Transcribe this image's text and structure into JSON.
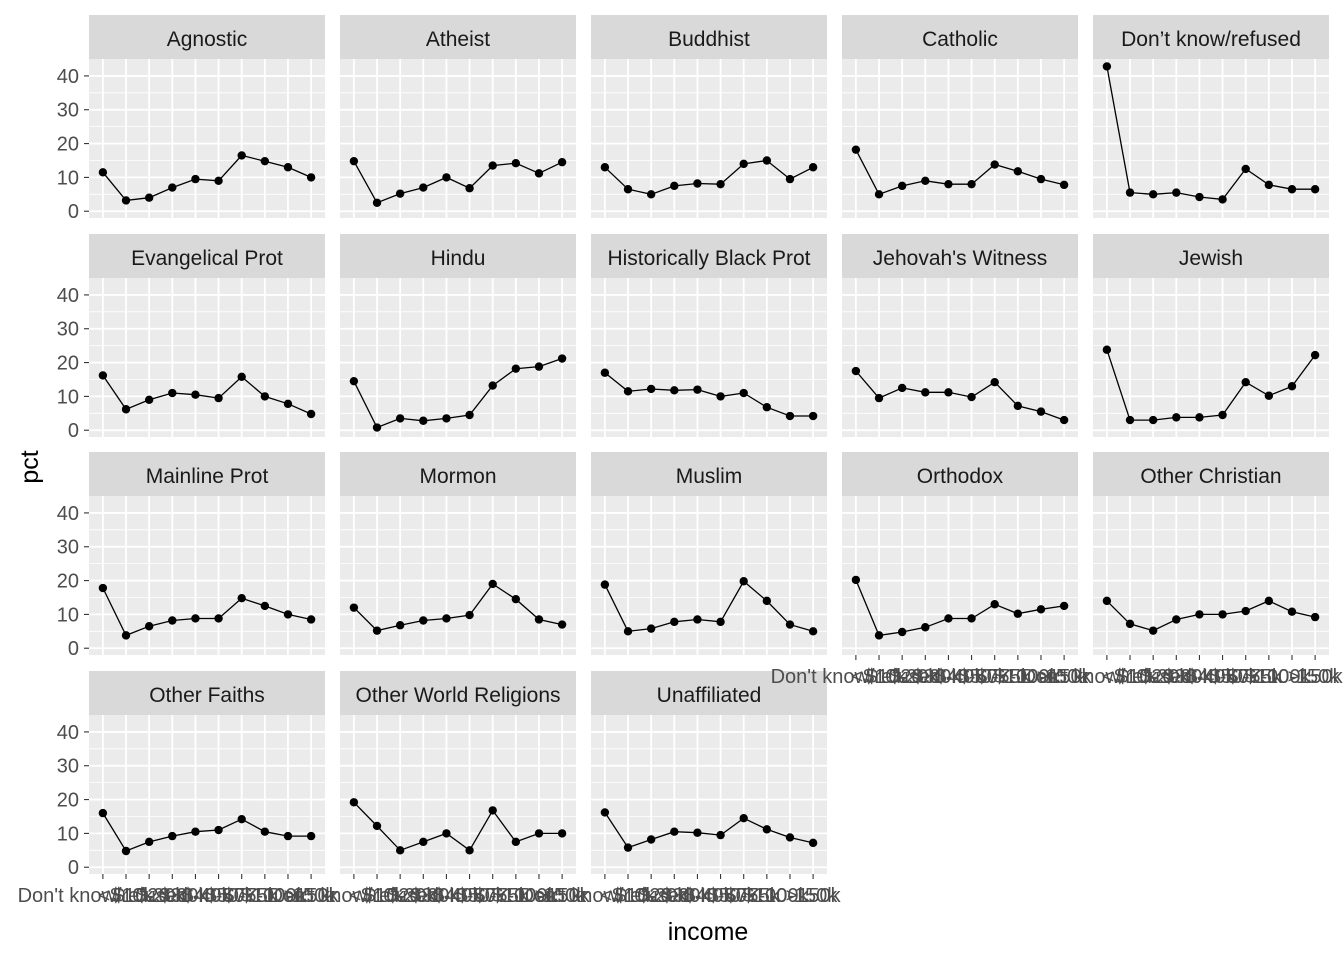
{
  "chart_data": {
    "type": "line",
    "layout": "facet-wrap",
    "xlabel": "income",
    "ylabel": "pct",
    "ylim": [
      -2,
      45
    ],
    "yticks": [
      0,
      10,
      20,
      30,
      40
    ],
    "grid": true,
    "categories": [
      "Don't know/refused",
      "<$10k",
      "$10-20k",
      "$20-30k",
      "$30-40k",
      "$40-50k",
      "$50-75k",
      "$75-100k",
      "$100-150k",
      ">150k"
    ],
    "panels": [
      {
        "name": "Agnostic",
        "values": [
          11.5,
          3.2,
          4.0,
          7.0,
          9.5,
          9.0,
          16.5,
          14.8,
          13.0,
          10.0
        ]
      },
      {
        "name": "Atheist",
        "values": [
          14.8,
          2.5,
          5.2,
          7.0,
          10.0,
          6.8,
          13.5,
          14.2,
          11.2,
          14.5
        ]
      },
      {
        "name": "Buddhist",
        "values": [
          13.0,
          6.5,
          5.0,
          7.5,
          8.2,
          8.0,
          14.0,
          15.0,
          9.5,
          13.0
        ]
      },
      {
        "name": "Catholic",
        "values": [
          18.2,
          5.0,
          7.5,
          9.0,
          8.0,
          8.0,
          13.8,
          11.8,
          9.5,
          7.8
        ]
      },
      {
        "name": "Don’t know/refused",
        "values": [
          42.8,
          5.5,
          5.0,
          5.5,
          4.2,
          3.5,
          12.5,
          7.8,
          6.5,
          6.5
        ]
      },
      {
        "name": "Evangelical Prot",
        "values": [
          16.2,
          6.2,
          9.0,
          11.0,
          10.5,
          9.5,
          15.8,
          10.0,
          7.8,
          4.8
        ]
      },
      {
        "name": "Hindu",
        "values": [
          14.5,
          0.8,
          3.5,
          2.8,
          3.5,
          4.5,
          13.2,
          18.2,
          18.8,
          21.2
        ]
      },
      {
        "name": "Historically Black Prot",
        "values": [
          17.0,
          11.5,
          12.2,
          11.8,
          12.0,
          10.0,
          11.0,
          6.8,
          4.2,
          4.2
        ]
      },
      {
        "name": "Jehovah's Witness",
        "values": [
          17.5,
          9.5,
          12.5,
          11.2,
          11.2,
          9.8,
          14.2,
          7.2,
          5.5,
          3.0
        ]
      },
      {
        "name": "Jewish",
        "values": [
          23.8,
          3.0,
          3.0,
          3.8,
          3.8,
          4.5,
          14.2,
          10.2,
          13.0,
          22.2
        ]
      },
      {
        "name": "Mainline Prot",
        "values": [
          17.8,
          3.8,
          6.5,
          8.2,
          8.8,
          8.8,
          14.8,
          12.5,
          10.0,
          8.5
        ]
      },
      {
        "name": "Mormon",
        "values": [
          12.0,
          5.2,
          6.8,
          8.2,
          8.8,
          9.8,
          19.0,
          14.5,
          8.5,
          7.0
        ]
      },
      {
        "name": "Muslim",
        "values": [
          18.8,
          5.0,
          5.8,
          7.8,
          8.5,
          7.8,
          19.8,
          14.0,
          7.0,
          5.0
        ]
      },
      {
        "name": "Orthodox",
        "values": [
          20.2,
          3.8,
          4.8,
          6.2,
          8.8,
          8.8,
          13.0,
          10.2,
          11.5,
          12.5
        ]
      },
      {
        "name": "Other Christian",
        "values": [
          14.0,
          7.2,
          5.2,
          8.5,
          10.0,
          10.0,
          11.0,
          14.0,
          10.8,
          9.2
        ]
      },
      {
        "name": "Other Faiths",
        "values": [
          16.0,
          4.8,
          7.5,
          9.2,
          10.5,
          11.0,
          14.2,
          10.5,
          9.2,
          9.2
        ]
      },
      {
        "name": "Other World Religions",
        "values": [
          19.2,
          12.2,
          5.0,
          7.5,
          10.0,
          5.0,
          16.8,
          7.5,
          10.0,
          10.0
        ]
      },
      {
        "name": "Unaffiliated",
        "values": [
          16.2,
          5.8,
          8.2,
          10.5,
          10.2,
          9.5,
          14.5,
          11.2,
          8.8,
          7.2
        ]
      }
    ]
  },
  "colors": {
    "panel_bg": "#ebebeb",
    "strip_bg": "#d9d9d9",
    "gridline": "#ffffff",
    "text": "#1a1a1a",
    "tick_text": "#4d4d4d",
    "point": "#000000"
  }
}
